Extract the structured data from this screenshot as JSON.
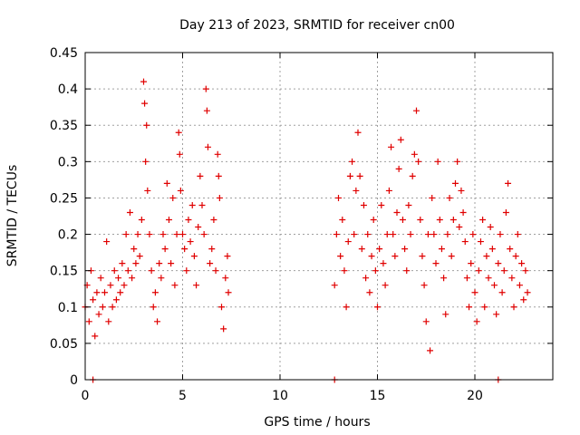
{
  "chart_data": {
    "type": "scatter",
    "title": "Day 213 of 2023, SRMTID for receiver cn00",
    "xlabel": "GPS time / hours",
    "ylabel": "SRMTID / TECUs",
    "xlim": [
      0,
      24
    ],
    "ylim": [
      0,
      0.45
    ],
    "x_ticks": [
      {
        "value": 0,
        "label": "0"
      },
      {
        "value": 5,
        "label": "5"
      },
      {
        "value": 10,
        "label": "10"
      },
      {
        "value": 15,
        "label": "15"
      },
      {
        "value": 20,
        "label": "20"
      }
    ],
    "y_ticks": [
      {
        "value": 0,
        "label": "0"
      },
      {
        "value": 0.05,
        "label": "0.05"
      },
      {
        "value": 0.1,
        "label": "0.1"
      },
      {
        "value": 0.15,
        "label": "0.15"
      },
      {
        "value": 0.2,
        "label": "0.2"
      },
      {
        "value": 0.25,
        "label": "0.25"
      },
      {
        "value": 0.3,
        "label": "0.3"
      },
      {
        "value": 0.35,
        "label": "0.35"
      },
      {
        "value": 0.4,
        "label": "0.4"
      },
      {
        "value": 0.45,
        "label": "0.45"
      }
    ],
    "grid": true,
    "marker": "+",
    "series": [
      {
        "name": "SRMTID",
        "color": "#e00000",
        "points": [
          [
            0.0,
            0.1
          ],
          [
            0.1,
            0.13
          ],
          [
            0.2,
            0.08
          ],
          [
            0.3,
            0.15
          ],
          [
            0.4,
            0.11
          ],
          [
            0.5,
            0.06
          ],
          [
            0.6,
            0.12
          ],
          [
            0.7,
            0.09
          ],
          [
            0.8,
            0.14
          ],
          [
            0.9,
            0.1
          ],
          [
            1.0,
            0.12
          ],
          [
            1.1,
            0.19
          ],
          [
            1.2,
            0.08
          ],
          [
            1.3,
            0.13
          ],
          [
            1.4,
            0.1
          ],
          [
            1.5,
            0.15
          ],
          [
            1.6,
            0.11
          ],
          [
            1.7,
            0.14
          ],
          [
            1.8,
            0.12
          ],
          [
            1.9,
            0.16
          ],
          [
            2.0,
            0.13
          ],
          [
            2.1,
            0.2
          ],
          [
            2.2,
            0.15
          ],
          [
            2.3,
            0.23
          ],
          [
            2.4,
            0.14
          ],
          [
            2.5,
            0.18
          ],
          [
            2.6,
            0.16
          ],
          [
            2.7,
            0.2
          ],
          [
            2.8,
            0.17
          ],
          [
            2.9,
            0.22
          ],
          [
            3.0,
            0.41
          ],
          [
            3.05,
            0.38
          ],
          [
            3.1,
            0.3
          ],
          [
            3.15,
            0.35
          ],
          [
            3.2,
            0.26
          ],
          [
            3.3,
            0.2
          ],
          [
            3.4,
            0.15
          ],
          [
            3.5,
            0.1
          ],
          [
            3.6,
            0.12
          ],
          [
            3.7,
            0.08
          ],
          [
            3.8,
            0.16
          ],
          [
            3.9,
            0.14
          ],
          [
            4.0,
            0.2
          ],
          [
            4.1,
            0.18
          ],
          [
            4.2,
            0.27
          ],
          [
            4.3,
            0.22
          ],
          [
            4.4,
            0.16
          ],
          [
            4.5,
            0.25
          ],
          [
            4.6,
            0.13
          ],
          [
            4.7,
            0.2
          ],
          [
            4.8,
            0.34
          ],
          [
            4.85,
            0.31
          ],
          [
            4.9,
            0.26
          ],
          [
            5.0,
            0.2
          ],
          [
            5.1,
            0.18
          ],
          [
            5.2,
            0.15
          ],
          [
            5.3,
            0.22
          ],
          [
            5.4,
            0.19
          ],
          [
            5.5,
            0.24
          ],
          [
            5.6,
            0.17
          ],
          [
            5.7,
            0.13
          ],
          [
            5.8,
            0.21
          ],
          [
            5.9,
            0.28
          ],
          [
            6.0,
            0.24
          ],
          [
            6.1,
            0.2
          ],
          [
            6.2,
            0.4
          ],
          [
            6.25,
            0.37
          ],
          [
            6.3,
            0.32
          ],
          [
            6.4,
            0.16
          ],
          [
            6.5,
            0.18
          ],
          [
            6.6,
            0.22
          ],
          [
            6.7,
            0.15
          ],
          [
            6.8,
            0.31
          ],
          [
            6.85,
            0.28
          ],
          [
            6.9,
            0.25
          ],
          [
            7.0,
            0.1
          ],
          [
            7.1,
            0.07
          ],
          [
            7.2,
            0.14
          ],
          [
            7.3,
            0.17
          ],
          [
            7.35,
            0.12
          ],
          [
            0.4,
            0.0
          ],
          [
            12.8,
            0.0
          ],
          [
            21.2,
            0.0
          ],
          [
            12.8,
            0.13
          ],
          [
            12.9,
            0.2
          ],
          [
            13.0,
            0.25
          ],
          [
            13.1,
            0.17
          ],
          [
            13.2,
            0.22
          ],
          [
            13.3,
            0.15
          ],
          [
            13.4,
            0.1
          ],
          [
            13.5,
            0.19
          ],
          [
            13.6,
            0.28
          ],
          [
            13.7,
            0.3
          ],
          [
            13.8,
            0.2
          ],
          [
            13.9,
            0.26
          ],
          [
            14.0,
            0.34
          ],
          [
            14.1,
            0.28
          ],
          [
            14.2,
            0.18
          ],
          [
            14.3,
            0.24
          ],
          [
            14.4,
            0.14
          ],
          [
            14.5,
            0.2
          ],
          [
            14.6,
            0.12
          ],
          [
            14.7,
            0.17
          ],
          [
            14.8,
            0.22
          ],
          [
            14.9,
            0.15
          ],
          [
            15.0,
            0.1
          ],
          [
            15.1,
            0.18
          ],
          [
            15.2,
            0.24
          ],
          [
            15.3,
            0.16
          ],
          [
            15.4,
            0.13
          ],
          [
            15.5,
            0.2
          ],
          [
            15.6,
            0.26
          ],
          [
            15.7,
            0.32
          ],
          [
            15.8,
            0.2
          ],
          [
            15.9,
            0.17
          ],
          [
            16.0,
            0.23
          ],
          [
            16.1,
            0.29
          ],
          [
            16.2,
            0.33
          ],
          [
            16.3,
            0.22
          ],
          [
            16.4,
            0.18
          ],
          [
            16.5,
            0.15
          ],
          [
            16.6,
            0.24
          ],
          [
            16.7,
            0.2
          ],
          [
            16.8,
            0.28
          ],
          [
            16.9,
            0.31
          ],
          [
            17.0,
            0.37
          ],
          [
            17.1,
            0.3
          ],
          [
            17.2,
            0.22
          ],
          [
            17.3,
            0.17
          ],
          [
            17.4,
            0.13
          ],
          [
            17.5,
            0.08
          ],
          [
            17.6,
            0.2
          ],
          [
            17.7,
            0.04
          ],
          [
            17.8,
            0.25
          ],
          [
            17.9,
            0.2
          ],
          [
            18.0,
            0.16
          ],
          [
            18.1,
            0.3
          ],
          [
            18.2,
            0.22
          ],
          [
            18.3,
            0.18
          ],
          [
            18.4,
            0.14
          ],
          [
            18.5,
            0.09
          ],
          [
            18.6,
            0.2
          ],
          [
            18.7,
            0.25
          ],
          [
            18.8,
            0.17
          ],
          [
            18.9,
            0.22
          ],
          [
            19.0,
            0.27
          ],
          [
            19.1,
            0.3
          ],
          [
            19.2,
            0.21
          ],
          [
            19.3,
            0.26
          ],
          [
            19.4,
            0.23
          ],
          [
            19.5,
            0.19
          ],
          [
            19.6,
            0.14
          ],
          [
            19.7,
            0.1
          ],
          [
            19.8,
            0.16
          ],
          [
            19.9,
            0.2
          ],
          [
            20.0,
            0.12
          ],
          [
            20.1,
            0.08
          ],
          [
            20.2,
            0.15
          ],
          [
            20.3,
            0.19
          ],
          [
            20.4,
            0.22
          ],
          [
            20.5,
            0.1
          ],
          [
            20.6,
            0.17
          ],
          [
            20.7,
            0.14
          ],
          [
            20.8,
            0.21
          ],
          [
            20.9,
            0.18
          ],
          [
            21.0,
            0.13
          ],
          [
            21.1,
            0.09
          ],
          [
            21.2,
            0.16
          ],
          [
            21.3,
            0.2
          ],
          [
            21.4,
            0.12
          ],
          [
            21.5,
            0.15
          ],
          [
            21.6,
            0.23
          ],
          [
            21.7,
            0.27
          ],
          [
            21.8,
            0.18
          ],
          [
            21.9,
            0.14
          ],
          [
            22.0,
            0.1
          ],
          [
            22.1,
            0.17
          ],
          [
            22.2,
            0.2
          ],
          [
            22.3,
            0.13
          ],
          [
            22.4,
            0.16
          ],
          [
            22.5,
            0.11
          ],
          [
            22.6,
            0.15
          ],
          [
            22.7,
            0.12
          ]
        ]
      }
    ]
  }
}
